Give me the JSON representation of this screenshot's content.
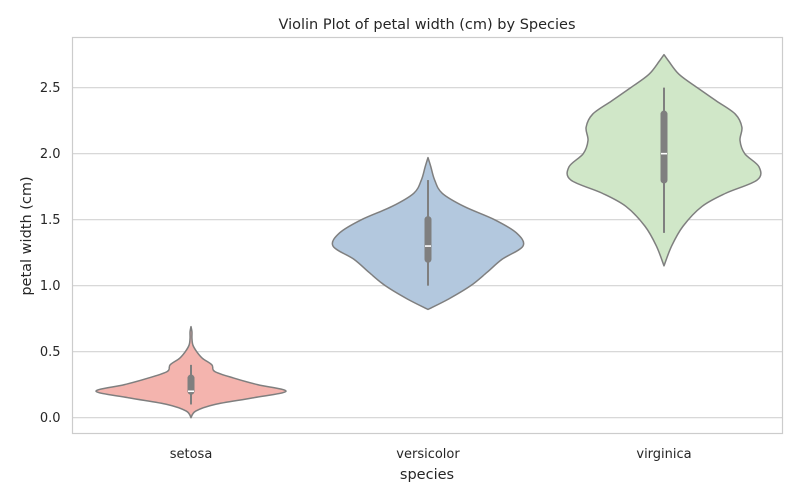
{
  "chart_data": {
    "type": "violin",
    "title": "Violin Plot of petal width (cm) by Species",
    "xlabel": "species",
    "ylabel": "petal width (cm)",
    "categories": [
      "setosa",
      "versicolor",
      "virginica"
    ],
    "ylim": [
      -0.12,
      2.88
    ],
    "yticks": [
      0.0,
      0.5,
      1.0,
      1.5,
      2.0,
      2.5
    ],
    "ytick_labels": [
      "0.0",
      "0.5",
      "1.0",
      "1.5",
      "2.0",
      "2.5"
    ],
    "grid": "horizontal",
    "violins": [
      {
        "category": "setosa",
        "color": "#f4b4ae",
        "whisker": [
          0.1,
          0.4
        ],
        "quartiles": [
          0.2,
          0.3
        ],
        "median": 0.2,
        "profile": [
          [
            0.0,
            0
          ],
          [
            0.05,
            0.05
          ],
          [
            0.1,
            0.25
          ],
          [
            0.15,
            0.65
          ],
          [
            0.2,
            1.0
          ],
          [
            0.25,
            0.7
          ],
          [
            0.3,
            0.45
          ],
          [
            0.35,
            0.25
          ],
          [
            0.4,
            0.22
          ],
          [
            0.45,
            0.12
          ],
          [
            0.5,
            0.06
          ],
          [
            0.55,
            0.02
          ],
          [
            0.6,
            0.01
          ],
          [
            0.65,
            0.01
          ],
          [
            0.69,
            0
          ]
        ]
      },
      {
        "category": "versicolor",
        "color": "#b3c8de",
        "whisker": [
          1.0,
          1.8
        ],
        "quartiles": [
          1.2,
          1.5
        ],
        "median": 1.3,
        "profile": [
          [
            0.82,
            0
          ],
          [
            0.9,
            0.22
          ],
          [
            1.0,
            0.45
          ],
          [
            1.1,
            0.62
          ],
          [
            1.2,
            0.78
          ],
          [
            1.3,
            1.0
          ],
          [
            1.4,
            0.93
          ],
          [
            1.5,
            0.7
          ],
          [
            1.6,
            0.38
          ],
          [
            1.7,
            0.15
          ],
          [
            1.8,
            0.07
          ],
          [
            1.9,
            0.03
          ],
          [
            1.97,
            0
          ]
        ]
      },
      {
        "category": "virginica",
        "color": "#d0e7c8",
        "whisker": [
          1.4,
          2.5
        ],
        "quartiles": [
          1.8,
          2.3
        ],
        "median": 2.0,
        "profile": [
          [
            1.15,
            0
          ],
          [
            1.3,
            0.08
          ],
          [
            1.45,
            0.2
          ],
          [
            1.6,
            0.4
          ],
          [
            1.7,
            0.65
          ],
          [
            1.8,
            0.98
          ],
          [
            1.9,
            1.0
          ],
          [
            2.0,
            0.85
          ],
          [
            2.1,
            0.8
          ],
          [
            2.2,
            0.82
          ],
          [
            2.3,
            0.75
          ],
          [
            2.4,
            0.55
          ],
          [
            2.5,
            0.35
          ],
          [
            2.6,
            0.16
          ],
          [
            2.7,
            0.05
          ],
          [
            2.75,
            0
          ]
        ]
      }
    ]
  }
}
